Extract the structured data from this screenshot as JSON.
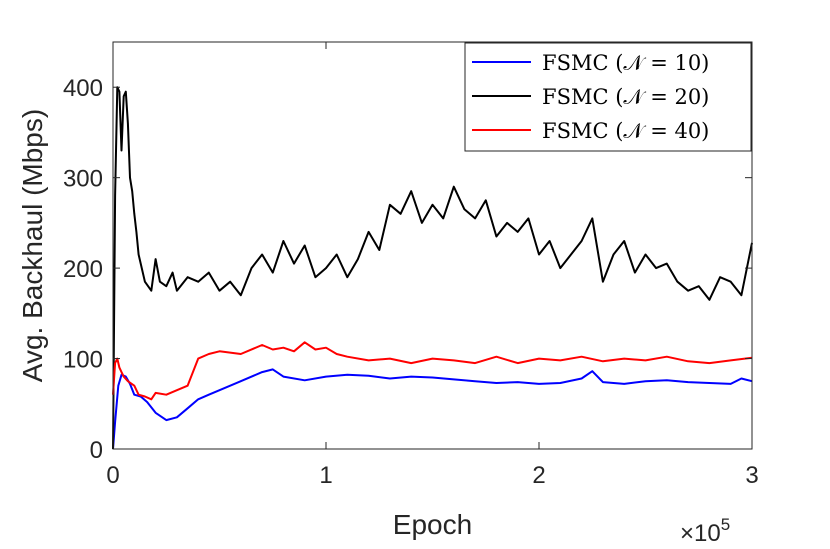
{
  "chart_data": {
    "type": "line",
    "xlabel": "Epoch",
    "ylabel": "Avg. Backhaul (Mbps)",
    "x_multiplier": "×10",
    "x_multiplier_exp": "5",
    "xlim": [
      0,
      3
    ],
    "ylim": [
      0,
      450
    ],
    "xticks": [
      0,
      1,
      2,
      3
    ],
    "xtick_labels": [
      "0",
      "1",
      "2",
      "3"
    ],
    "yticks": [
      0,
      100,
      200,
      300,
      400
    ],
    "ytick_labels": [
      "0",
      "100",
      "200",
      "300",
      "400"
    ],
    "legend_position": "top-right",
    "grid": false,
    "series": [
      {
        "name": "FSMC (𝒩 = 10)",
        "color": "#0000FF",
        "x": [
          0,
          0.01,
          0.025,
          0.04,
          0.06,
          0.08,
          0.1,
          0.13,
          0.16,
          0.2,
          0.25,
          0.3,
          0.35,
          0.4,
          0.45,
          0.5,
          0.6,
          0.7,
          0.75,
          0.8,
          0.9,
          1.0,
          1.1,
          1.2,
          1.3,
          1.4,
          1.5,
          1.6,
          1.7,
          1.8,
          1.9,
          2.0,
          2.1,
          2.2,
          2.25,
          2.3,
          2.4,
          2.5,
          2.6,
          2.7,
          2.8,
          2.9,
          2.95,
          3.0
        ],
        "y": [
          0,
          30,
          70,
          82,
          80,
          72,
          60,
          58,
          52,
          40,
          32,
          35,
          45,
          55,
          60,
          65,
          75,
          85,
          88,
          80,
          76,
          80,
          82,
          81,
          78,
          80,
          79,
          77,
          75,
          73,
          74,
          72,
          73,
          78,
          86,
          74,
          72,
          75,
          76,
          74,
          73,
          72,
          78,
          75
        ]
      },
      {
        "name": "FSMC (𝒩 = 20)",
        "color": "#000000",
        "x": [
          0,
          0.01,
          0.02,
          0.03,
          0.04,
          0.05,
          0.06,
          0.07,
          0.08,
          0.09,
          0.1,
          0.11,
          0.12,
          0.15,
          0.18,
          0.2,
          0.22,
          0.25,
          0.28,
          0.3,
          0.35,
          0.4,
          0.45,
          0.5,
          0.55,
          0.6,
          0.65,
          0.7,
          0.75,
          0.8,
          0.85,
          0.9,
          0.95,
          1.0,
          1.05,
          1.1,
          1.15,
          1.2,
          1.25,
          1.3,
          1.35,
          1.4,
          1.45,
          1.5,
          1.55,
          1.6,
          1.65,
          1.7,
          1.75,
          1.8,
          1.85,
          1.9,
          1.95,
          2.0,
          2.05,
          2.1,
          2.15,
          2.2,
          2.25,
          2.3,
          2.35,
          2.4,
          2.45,
          2.5,
          2.55,
          2.6,
          2.65,
          2.7,
          2.75,
          2.8,
          2.85,
          2.9,
          2.95,
          3.0
        ],
        "y": [
          0,
          280,
          400,
          395,
          330,
          390,
          395,
          360,
          300,
          285,
          260,
          240,
          215,
          185,
          175,
          210,
          185,
          180,
          195,
          175,
          190,
          185,
          195,
          175,
          185,
          170,
          200,
          215,
          195,
          230,
          205,
          225,
          190,
          200,
          215,
          190,
          210,
          240,
          220,
          270,
          260,
          285,
          250,
          270,
          255,
          290,
          265,
          255,
          275,
          235,
          250,
          240,
          255,
          215,
          230,
          200,
          215,
          230,
          255,
          185,
          215,
          230,
          195,
          215,
          200,
          205,
          185,
          175,
          180,
          165,
          190,
          185,
          170,
          228
        ]
      },
      {
        "name": "FSMC (𝒩 = 40)",
        "color": "#FF0000",
        "x": [
          0,
          0.01,
          0.02,
          0.03,
          0.04,
          0.05,
          0.07,
          0.1,
          0.12,
          0.15,
          0.18,
          0.2,
          0.25,
          0.3,
          0.35,
          0.4,
          0.45,
          0.5,
          0.6,
          0.7,
          0.75,
          0.8,
          0.85,
          0.9,
          0.95,
          1.0,
          1.05,
          1.1,
          1.2,
          1.3,
          1.4,
          1.5,
          1.6,
          1.7,
          1.8,
          1.9,
          2.0,
          2.1,
          2.2,
          2.3,
          2.4,
          2.5,
          2.6,
          2.7,
          2.8,
          2.9,
          3.0
        ],
        "y": [
          60,
          95,
          100,
          90,
          85,
          80,
          75,
          70,
          60,
          58,
          55,
          62,
          60,
          65,
          70,
          100,
          105,
          108,
          105,
          115,
          110,
          112,
          108,
          118,
          110,
          112,
          105,
          102,
          98,
          100,
          95,
          100,
          98,
          95,
          102,
          95,
          100,
          98,
          102,
          97,
          100,
          98,
          102,
          97,
          95,
          98,
          101
        ]
      }
    ]
  }
}
